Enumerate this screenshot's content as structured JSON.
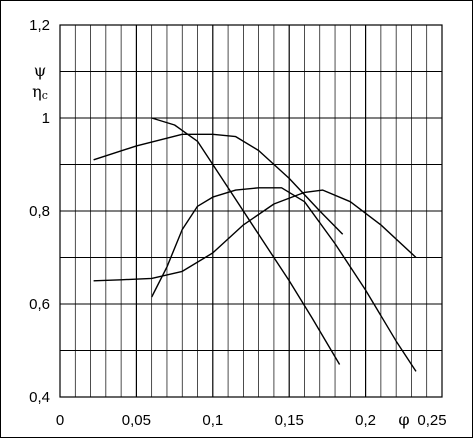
{
  "chart_data": {
    "type": "line",
    "xlim": [
      0,
      0.25
    ],
    "ylim": [
      0.4,
      1.2
    ],
    "x_ticks": [
      {
        "value": 0,
        "label": "0"
      },
      {
        "value": 0.05,
        "label": "0,05"
      },
      {
        "value": 0.1,
        "label": "0,1"
      },
      {
        "value": 0.15,
        "label": "0,15"
      },
      {
        "value": 0.2,
        "label": "0,2"
      },
      {
        "value": 0.25,
        "label": "0,25"
      }
    ],
    "y_ticks": [
      {
        "value": 0.4,
        "label": "0,4"
      },
      {
        "value": 0.6,
        "label": "0,6"
      },
      {
        "value": 0.8,
        "label": "0,8"
      },
      {
        "value": 1.0,
        "label": "1"
      },
      {
        "value": 1.2,
        "label": "1,2"
      }
    ],
    "xlabel": "φ",
    "ylabel_lines": [
      "ψ",
      "ηc"
    ],
    "grid": true,
    "minor_x_step": 0.01,
    "minor_y_step": 0.1,
    "series": [
      {
        "points": [
          [
            0.022,
            0.91
          ],
          [
            0.05,
            0.94
          ],
          [
            0.08,
            0.965
          ],
          [
            0.1,
            0.965
          ],
          [
            0.115,
            0.96
          ],
          [
            0.13,
            0.93
          ],
          [
            0.15,
            0.87
          ],
          [
            0.17,
            0.8
          ],
          [
            0.185,
            0.75
          ]
        ]
      },
      {
        "points": [
          [
            0.06,
            1.0
          ],
          [
            0.075,
            0.985
          ],
          [
            0.09,
            0.95
          ],
          [
            0.11,
            0.85
          ],
          [
            0.13,
            0.75
          ],
          [
            0.15,
            0.65
          ],
          [
            0.165,
            0.57
          ],
          [
            0.183,
            0.47
          ]
        ]
      },
      {
        "points": [
          [
            0.06,
            0.615
          ],
          [
            0.07,
            0.68
          ],
          [
            0.08,
            0.76
          ],
          [
            0.09,
            0.81
          ],
          [
            0.1,
            0.83
          ],
          [
            0.115,
            0.845
          ],
          [
            0.13,
            0.85
          ],
          [
            0.145,
            0.85
          ],
          [
            0.16,
            0.82
          ],
          [
            0.18,
            0.73
          ],
          [
            0.2,
            0.63
          ],
          [
            0.22,
            0.52
          ],
          [
            0.233,
            0.455
          ]
        ]
      },
      {
        "points": [
          [
            0.022,
            0.65
          ],
          [
            0.04,
            0.652
          ],
          [
            0.06,
            0.655
          ],
          [
            0.08,
            0.67
          ],
          [
            0.1,
            0.71
          ],
          [
            0.12,
            0.77
          ],
          [
            0.14,
            0.815
          ],
          [
            0.16,
            0.84
          ],
          [
            0.172,
            0.845
          ],
          [
            0.19,
            0.82
          ],
          [
            0.21,
            0.77
          ],
          [
            0.233,
            0.7
          ]
        ]
      }
    ]
  }
}
